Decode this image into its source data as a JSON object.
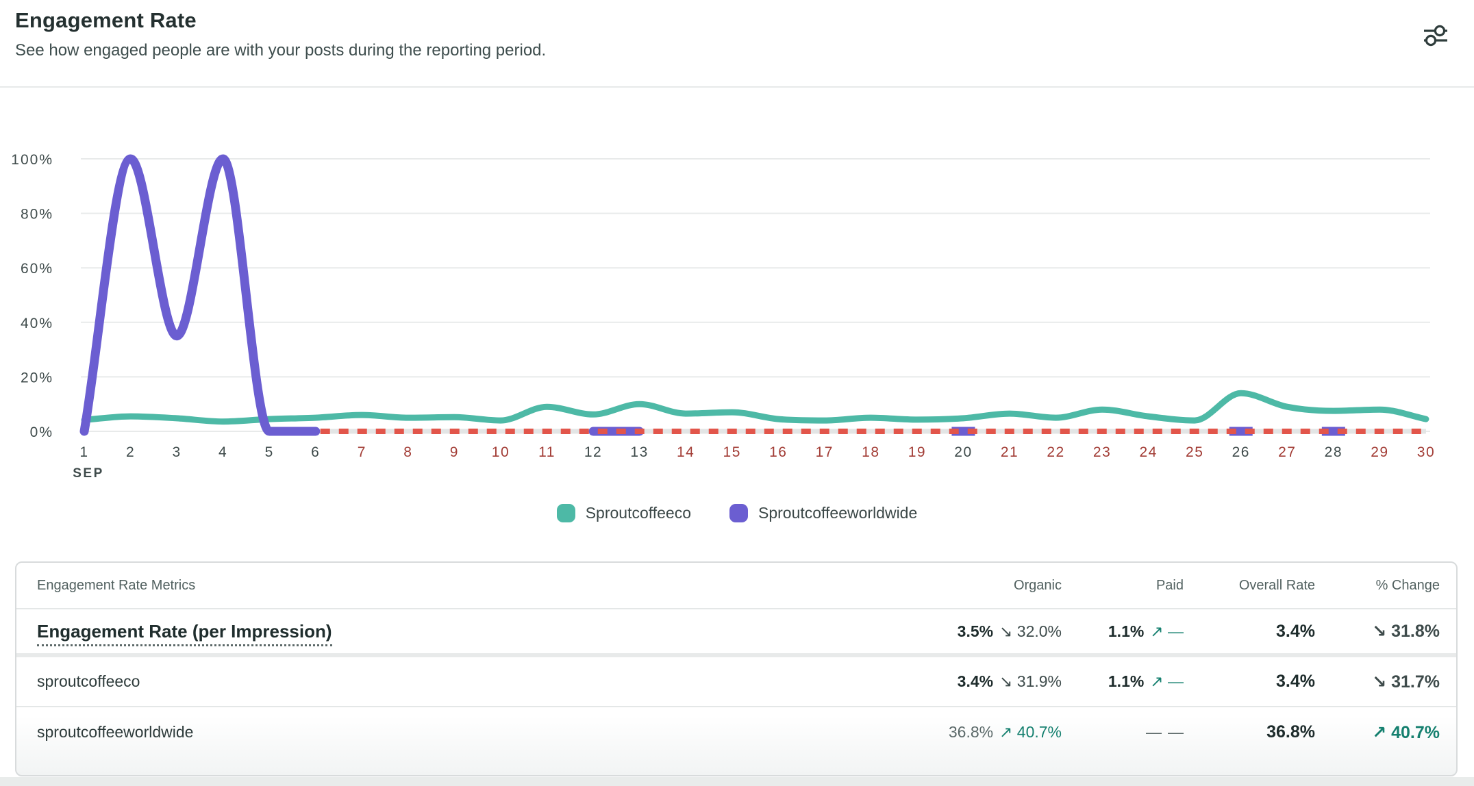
{
  "header": {
    "title": "Engagement Rate",
    "subtitle": "See how engaged people are with your posts during the reporting period."
  },
  "chart_data": {
    "type": "line",
    "title": "Engagement Rate",
    "xlabel": "",
    "ylabel": "",
    "x_axis_label": "SEP",
    "x": [
      1,
      2,
      3,
      4,
      5,
      6,
      7,
      8,
      9,
      10,
      11,
      12,
      13,
      14,
      15,
      16,
      17,
      18,
      19,
      20,
      21,
      22,
      23,
      24,
      25,
      26,
      27,
      28,
      29,
      30
    ],
    "ylim": [
      0,
      100
    ],
    "y_ticks": [
      0,
      20,
      40,
      60,
      80,
      100
    ],
    "y_tick_suffix": "%",
    "grid": "horizontal",
    "legend_position": "bottom-center",
    "series": [
      {
        "name": "Sproutcoffeeco",
        "color": "#4db9a6",
        "values": [
          4.2,
          5.5,
          4.8,
          3.6,
          4.5,
          5,
          6,
          5,
          5.2,
          4,
          9,
          6.2,
          10,
          6.5,
          7,
          4.5,
          4,
          5,
          4.3,
          4.8,
          6.5,
          5,
          8,
          5.5,
          4,
          14,
          9,
          7.5,
          8,
          4.5
        ]
      },
      {
        "name": "Sproutcoffeeworldwide",
        "color": "#6b5ed1",
        "values": [
          0,
          100,
          35,
          100,
          0,
          0,
          null,
          null,
          null,
          null,
          null,
          0,
          0,
          null,
          null,
          null,
          null,
          null,
          null,
          0,
          null,
          null,
          null,
          null,
          null,
          0,
          null,
          0,
          null,
          null
        ]
      }
    ],
    "no_data_line": {
      "style": "dashed",
      "color": "#e2554a",
      "track_color": "#e3e5e5",
      "from_day": 6,
      "to_day": 30,
      "value": 0
    },
    "axis_label_color_dark": "#3f4b4b",
    "axis_label_color_missing": "#a23c35",
    "dark_label_days": [
      1,
      2,
      3,
      4,
      5,
      6,
      12,
      13,
      20,
      26,
      28
    ],
    "gridline_color": "#e8eaea"
  },
  "legend": {
    "items": [
      {
        "label": "Sproutcoffeeco",
        "color": "#4db9a6"
      },
      {
        "label": "Sproutcoffeeworldwide",
        "color": "#6b5ed1"
      }
    ]
  },
  "table": {
    "metrics_header": "Engagement Rate Metrics",
    "columns": [
      "Organic",
      "Paid",
      "Overall Rate",
      "% Change"
    ],
    "rows": [
      {
        "metric": "Engagement Rate (per Impression)",
        "organic_value": "3.5%",
        "organic_change": "↘ 32.0%",
        "organic_tone": "dark",
        "paid_value": "1.1%",
        "paid_value_tone": "bold",
        "paid_change": "↗ —",
        "paid_tone": "teal",
        "overall": "3.4%",
        "change": "↘ 31.8%",
        "change_tone": "dark"
      },
      {
        "metric": "sproutcoffeeco",
        "organic_value": "3.4%",
        "organic_change": "↘ 31.9%",
        "organic_tone": "dark",
        "paid_value": "1.1%",
        "paid_value_tone": "bold",
        "paid_change": "↗ —",
        "paid_tone": "teal",
        "overall": "3.4%",
        "change": "↘ 31.7%",
        "change_tone": "dark"
      },
      {
        "metric": "sproutcoffeeworldwide",
        "organic_value": "36.8%",
        "organic_change": "↗ 40.7%",
        "organic_tone": "teal",
        "paid_value": "—",
        "paid_value_tone": "muted",
        "paid_change": "—",
        "paid_tone": "muted",
        "overall": "36.8%",
        "change": "↗ 40.7%",
        "change_tone": "teal"
      }
    ]
  },
  "icons": {
    "settings": "filter-sliders-icon"
  }
}
